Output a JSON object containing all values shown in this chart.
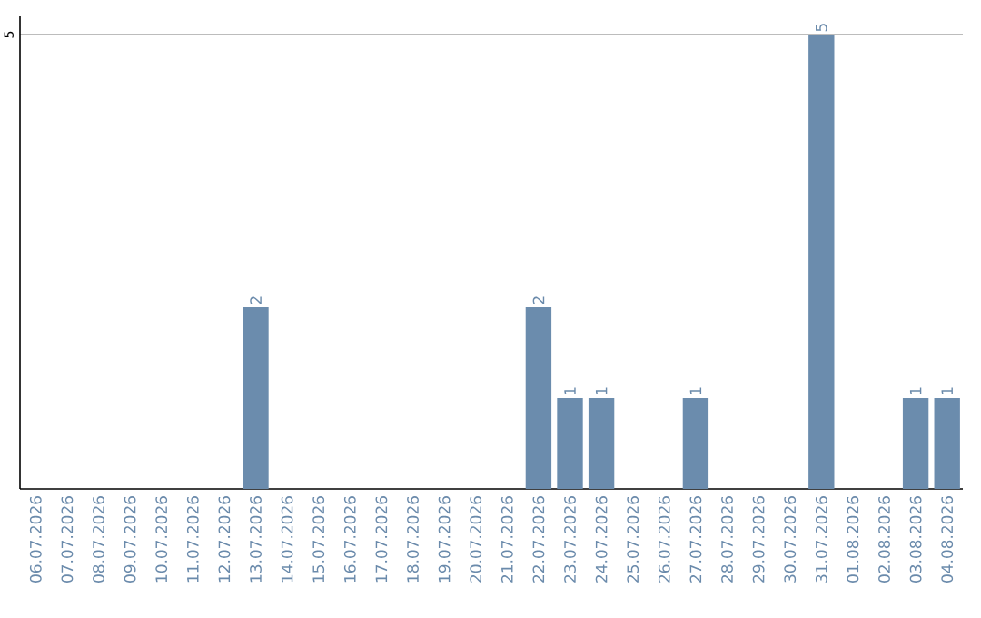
{
  "chart_data": {
    "type": "bar",
    "categories": [
      "06.07.2026",
      "07.07.2026",
      "08.07.2026",
      "09.07.2026",
      "10.07.2026",
      "11.07.2026",
      "12.07.2026",
      "13.07.2026",
      "14.07.2026",
      "15.07.2026",
      "16.07.2026",
      "17.07.2026",
      "18.07.2026",
      "19.07.2026",
      "20.07.2026",
      "21.07.2026",
      "22.07.2026",
      "23.07.2026",
      "24.07.2026",
      "25.07.2026",
      "26.07.2026",
      "27.07.2026",
      "28.07.2026",
      "29.07.2026",
      "30.07.2026",
      "31.07.2026",
      "01.08.2026",
      "02.08.2026",
      "03.08.2026",
      "04.08.2026"
    ],
    "values": [
      0,
      0,
      0,
      0,
      0,
      0,
      0,
      2,
      0,
      0,
      0,
      0,
      0,
      0,
      0,
      0,
      2,
      1,
      1,
      0,
      0,
      1,
      0,
      0,
      0,
      5,
      0,
      0,
      1,
      1
    ],
    "value_labels": [
      null,
      null,
      null,
      null,
      null,
      null,
      null,
      "2",
      null,
      null,
      null,
      null,
      null,
      null,
      null,
      null,
      "2",
      "1",
      "1",
      null,
      null,
      "1",
      null,
      null,
      null,
      "5",
      null,
      null,
      "1",
      "1"
    ],
    "color": "#6b8cad",
    "ylim": [
      0,
      5.2
    ],
    "yticks": [
      5
    ],
    "grid": "y"
  }
}
